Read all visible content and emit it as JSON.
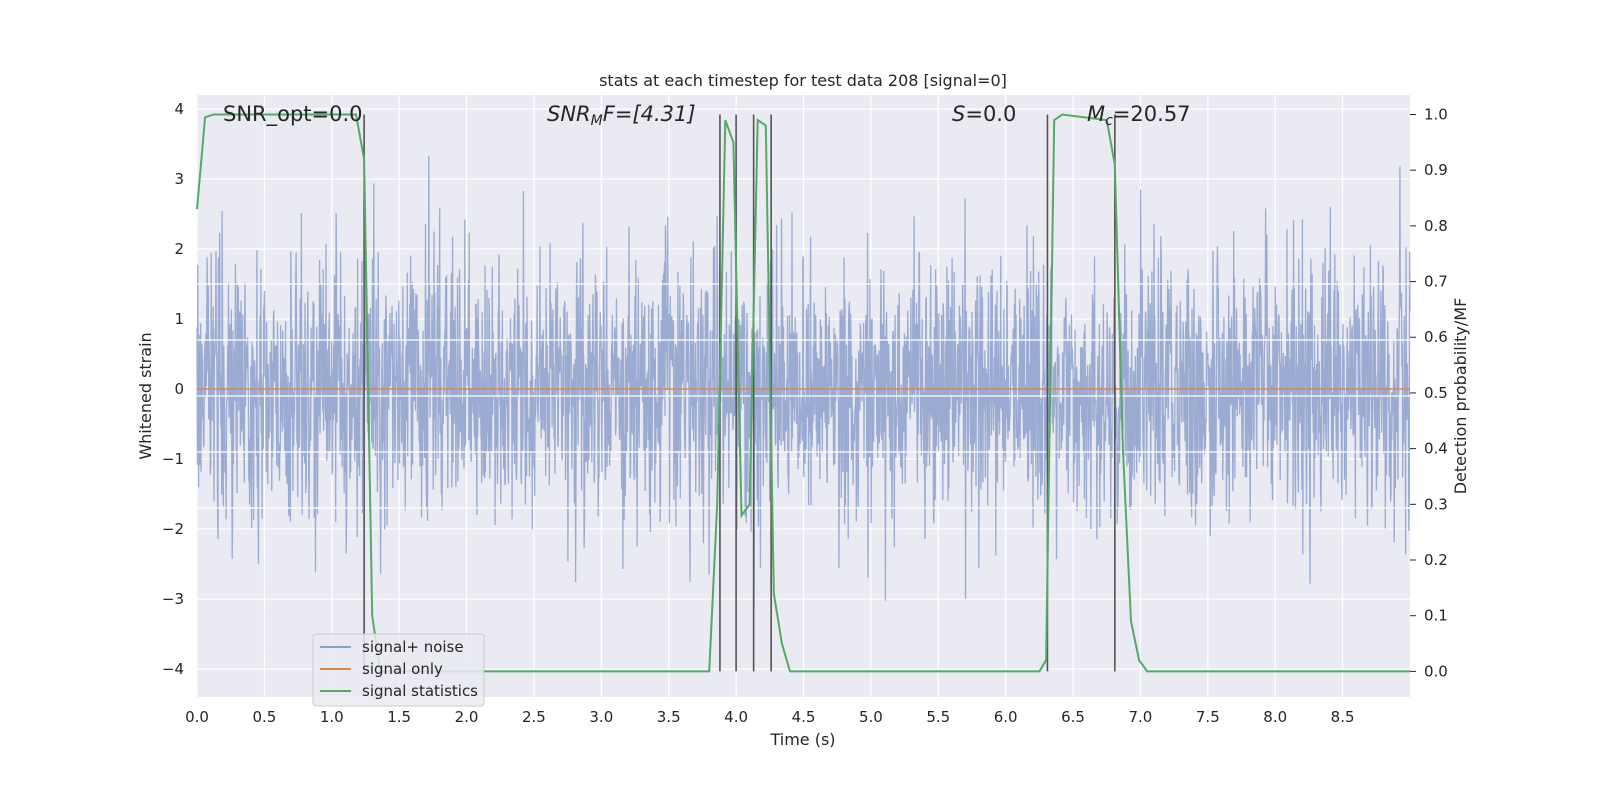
{
  "chart_data": {
    "type": "line",
    "title": "stats at each timestep for test data 208 [signal=0]",
    "xlabel": "Time (s)",
    "ylabel_left": "Whitened strain",
    "ylabel_right": "Detection probability/MF",
    "xlim": [
      0.0,
      9.0
    ],
    "ylim_left": [
      -4.4,
      4.2
    ],
    "ylim_right": [
      -0.046,
      1.035
    ],
    "x_ticks": [
      0.0,
      0.5,
      1.0,
      1.5,
      2.0,
      2.5,
      3.0,
      3.5,
      4.0,
      4.5,
      5.0,
      5.5,
      6.0,
      6.5,
      7.0,
      7.5,
      8.0,
      8.5
    ],
    "x_tick_labels": [
      "0.0",
      "0.5",
      "1.0",
      "1.5",
      "2.0",
      "2.5",
      "3.0",
      "3.5",
      "4.0",
      "4.5",
      "5.0",
      "5.5",
      "6.0",
      "6.5",
      "7.0",
      "7.5",
      "8.0",
      "8.5"
    ],
    "y_ticks_left": [
      -4,
      -3,
      -2,
      -1,
      0,
      1,
      2,
      3,
      4
    ],
    "y_tick_labels_left": [
      "−4",
      "−3",
      "−2",
      "−1",
      "0",
      "1",
      "2",
      "3",
      "4"
    ],
    "y_ticks_right": [
      0.0,
      0.1,
      0.2,
      0.3,
      0.4,
      0.5,
      0.6,
      0.7,
      0.8,
      0.9,
      1.0
    ],
    "y_tick_labels_right": [
      "0.0",
      "0.1",
      "0.2",
      "0.3",
      "0.4",
      "0.5",
      "0.6",
      "0.7",
      "0.8",
      "0.9",
      "1.0"
    ],
    "grid": true,
    "legend_position": "lower-left",
    "annotations": {
      "snr_opt": "SNR_opt=0.0",
      "snr_mf_sym": "SNR",
      "snr_mf_sub": "M",
      "snr_mf_rest": "F=[4.31]",
      "s_sym": "S",
      "s_rest": "=0.0",
      "mc_sym": "M",
      "mc_sub": "c",
      "mc_rest": "=20.57"
    },
    "series": [
      {
        "name": "signal+ noise",
        "color": "#8c9fcb",
        "axis": "left",
        "description_values": "dense noise, approx. within ±2.5, peaks to ±3.9",
        "x_range": [
          0.0,
          9.0
        ],
        "num_points": 900
      },
      {
        "name": "signal only",
        "color": "#dd8452",
        "axis": "left",
        "x": [
          0.0,
          9.0
        ],
        "y": [
          0.0,
          0.0
        ]
      },
      {
        "name": "signal statistics",
        "color": "#55a868",
        "axis": "right",
        "x": [
          0.0,
          0.06,
          0.12,
          1.18,
          1.24,
          1.3,
          1.36,
          3.8,
          3.86,
          3.92,
          3.98,
          4.04,
          4.1,
          4.16,
          4.22,
          4.28,
          4.34,
          4.4,
          6.25,
          6.3,
          6.36,
          6.42,
          6.75,
          6.81,
          6.87,
          6.93,
          6.99,
          7.05,
          7.11,
          9.0
        ],
        "y": [
          0.83,
          0.995,
          1.0,
          1.0,
          0.92,
          0.1,
          0.0,
          0.0,
          0.3,
          0.99,
          0.95,
          0.28,
          0.3,
          0.99,
          0.98,
          0.14,
          0.05,
          0.0,
          0.0,
          0.02,
          0.99,
          1.0,
          0.99,
          0.91,
          0.4,
          0.09,
          0.02,
          0.0,
          0.0,
          0.0
        ]
      }
    ],
    "vertical_lines": {
      "color": "#555555",
      "x": [
        1.24,
        3.88,
        4.0,
        4.13,
        4.26,
        6.31,
        6.81
      ]
    }
  }
}
